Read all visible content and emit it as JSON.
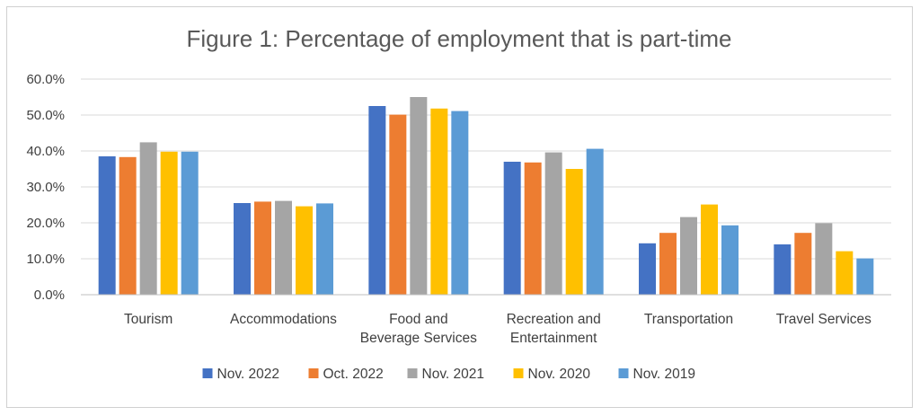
{
  "chart_data": {
    "type": "bar",
    "title": "Figure 1:  Percentage of employment that is part-time",
    "xlabel": "",
    "ylabel": "",
    "ylim": [
      0,
      60
    ],
    "y_ticks": [
      "0.0%",
      "10.0%",
      "20.0%",
      "30.0%",
      "40.0%",
      "50.0%",
      "60.0%"
    ],
    "y_tick_values": [
      0,
      10,
      20,
      30,
      40,
      50,
      60
    ],
    "grid": true,
    "legend_position": "bottom",
    "categories": [
      [
        "Tourism"
      ],
      [
        "Accommodations"
      ],
      [
        "Food and",
        "Beverage Services"
      ],
      [
        "Recreation and",
        "Entertainment"
      ],
      [
        "Transportation"
      ],
      [
        "Travel Services"
      ]
    ],
    "series": [
      {
        "name": "Nov. 2022",
        "color": "#4472c4",
        "values": [
          38.5,
          25.5,
          52.5,
          37.0,
          14.3,
          14.0
        ]
      },
      {
        "name": "Oct. 2022",
        "color": "#ed7d31",
        "values": [
          38.3,
          25.9,
          50.1,
          36.8,
          17.2,
          17.2
        ]
      },
      {
        "name": "Nov. 2021",
        "color": "#a5a5a5",
        "values": [
          42.4,
          26.1,
          55.0,
          39.6,
          21.6,
          19.9
        ]
      },
      {
        "name": "Nov. 2020",
        "color": "#ffc000",
        "values": [
          39.8,
          24.6,
          51.8,
          35.0,
          25.1,
          12.1
        ]
      },
      {
        "name": "Nov. 2019",
        "color": "#5b9bd5",
        "values": [
          39.8,
          25.4,
          51.1,
          40.6,
          19.3,
          10.1
        ]
      }
    ]
  }
}
